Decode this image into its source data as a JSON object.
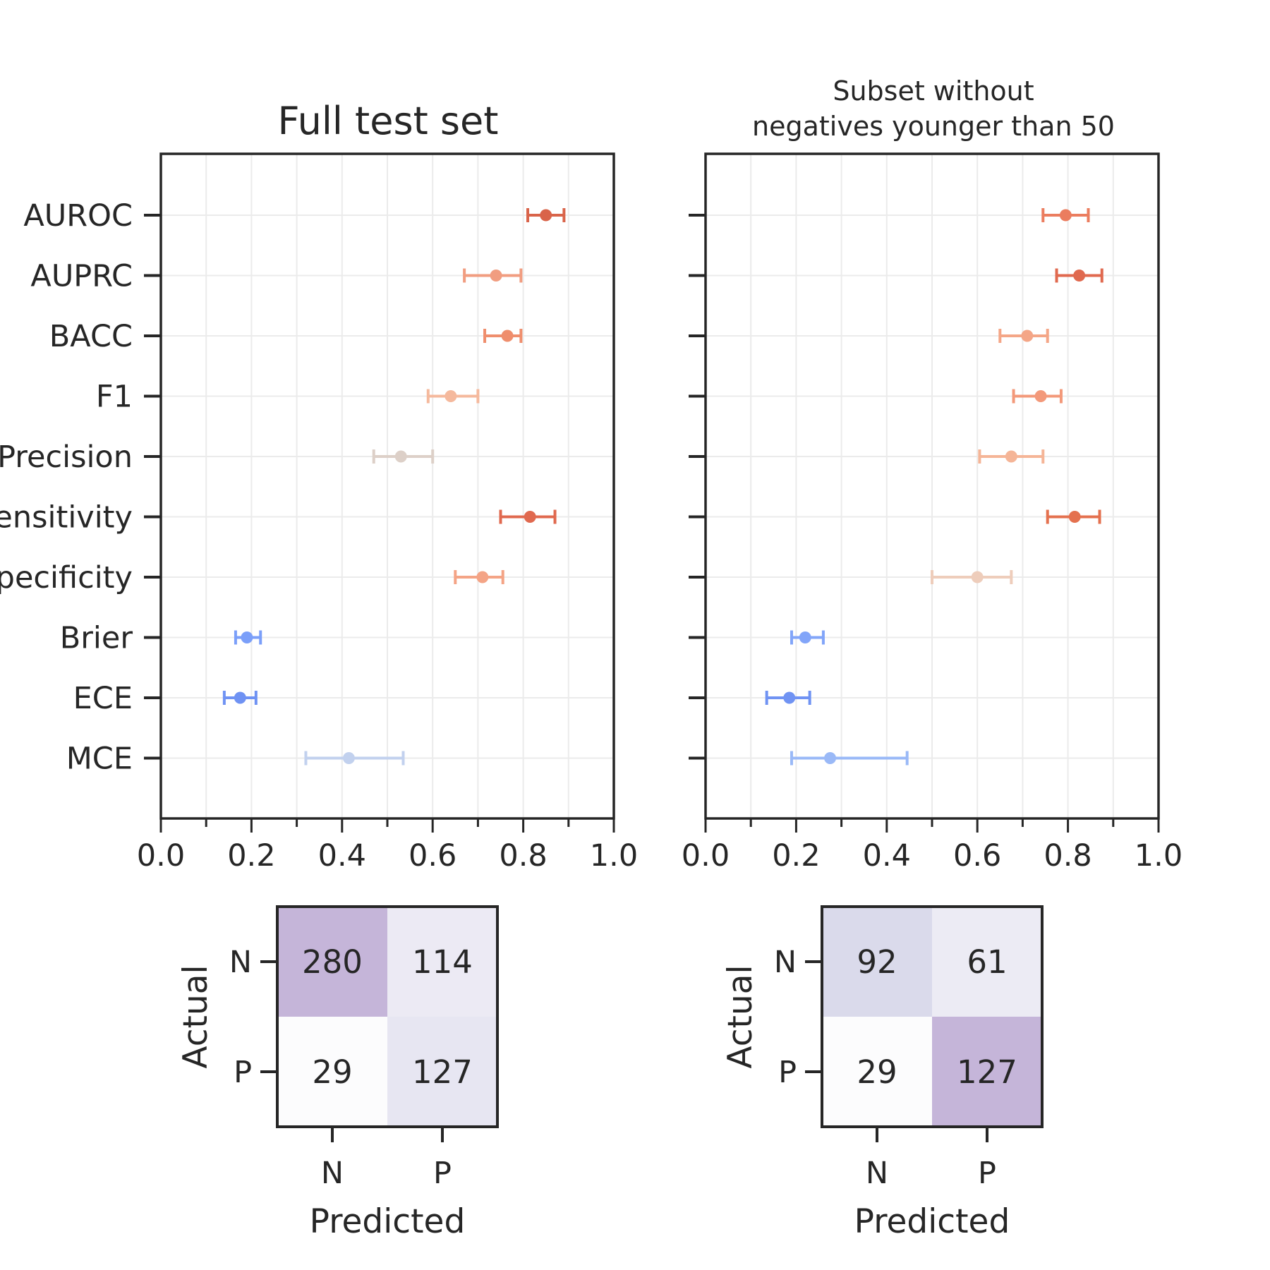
{
  "figure_titles": {
    "left": "Full test set",
    "right_line1": "Subset without",
    "right_line2": "negatives younger than 50"
  },
  "metric_labels": [
    "AUROC",
    "AUPRC",
    "BACC",
    "F1",
    "Precision",
    "Sensitivity",
    "Specificity",
    "Brier",
    "ECE",
    "MCE"
  ],
  "x_ticks": [
    "0.0",
    "0.2",
    "0.4",
    "0.6",
    "0.8",
    "1.0"
  ],
  "chart_data": [
    {
      "type": "scatter",
      "subtype": "forest-plot with confidence intervals",
      "title": "Full test set",
      "xlim": [
        0,
        1
      ],
      "grid": true,
      "categories": [
        "AUROC",
        "AUPRC",
        "BACC",
        "F1",
        "Precision",
        "Sensitivity",
        "Specificity",
        "Brier",
        "ECE",
        "MCE"
      ],
      "values": [
        0.85,
        0.74,
        0.765,
        0.64,
        0.53,
        0.815,
        0.71,
        0.19,
        0.175,
        0.415
      ],
      "ci_low": [
        0.81,
        0.67,
        0.715,
        0.59,
        0.47,
        0.75,
        0.65,
        0.165,
        0.14,
        0.32
      ],
      "ci_high": [
        0.89,
        0.795,
        0.795,
        0.7,
        0.6,
        0.87,
        0.755,
        0.22,
        0.21,
        0.535
      ],
      "colors": [
        "#d9644a",
        "#f19d80",
        "#ef8e6d",
        "#f5b99d",
        "#ddd0c8",
        "#e0694f",
        "#f4a486",
        "#7b9ff9",
        "#6f92f3",
        "#c2d1ee"
      ]
    },
    {
      "type": "scatter",
      "subtype": "forest-plot with confidence intervals",
      "title": "Subset without negatives younger than 50",
      "xlim": [
        0,
        1
      ],
      "grid": true,
      "categories": [
        "AUROC",
        "AUPRC",
        "BACC",
        "F1",
        "Precision",
        "Sensitivity",
        "Specificity",
        "Brier",
        "ECE",
        "MCE"
      ],
      "values": [
        0.795,
        0.825,
        0.71,
        0.74,
        0.675,
        0.815,
        0.6,
        0.22,
        0.185,
        0.275
      ],
      "ci_low": [
        0.745,
        0.775,
        0.65,
        0.68,
        0.605,
        0.755,
        0.5,
        0.19,
        0.135,
        0.19
      ],
      "ci_high": [
        0.845,
        0.875,
        0.755,
        0.785,
        0.745,
        0.87,
        0.675,
        0.26,
        0.23,
        0.445
      ],
      "colors": [
        "#eb7d5f",
        "#e0694f",
        "#f4a687",
        "#f3997a",
        "#f5b597",
        "#e4714f",
        "#eecdbb",
        "#82a5f9",
        "#7093f3",
        "#9ab9f7"
      ]
    },
    {
      "type": "heatmap",
      "subtype": "confusion matrix",
      "xlabel": "Predicted",
      "ylabel": "Actual",
      "x_categories": [
        "N",
        "P"
      ],
      "y_categories": [
        "N",
        "P"
      ],
      "values": [
        [
          280,
          114
        ],
        [
          29,
          127
        ]
      ],
      "cell_colors": [
        [
          "#c5b5d9",
          "#eceaf4"
        ],
        [
          "#fcfcfd",
          "#e7e6f2"
        ]
      ]
    },
    {
      "type": "heatmap",
      "subtype": "confusion matrix",
      "xlabel": "Predicted",
      "ylabel": "Actual",
      "x_categories": [
        "N",
        "P"
      ],
      "y_categories": [
        "N",
        "P"
      ],
      "values": [
        [
          92,
          61
        ],
        [
          29,
          127
        ]
      ],
      "cell_colors": [
        [
          "#dadaeb",
          "#ecebf4"
        ],
        [
          "#fcfcfd",
          "#c5b5d9"
        ]
      ]
    }
  ]
}
